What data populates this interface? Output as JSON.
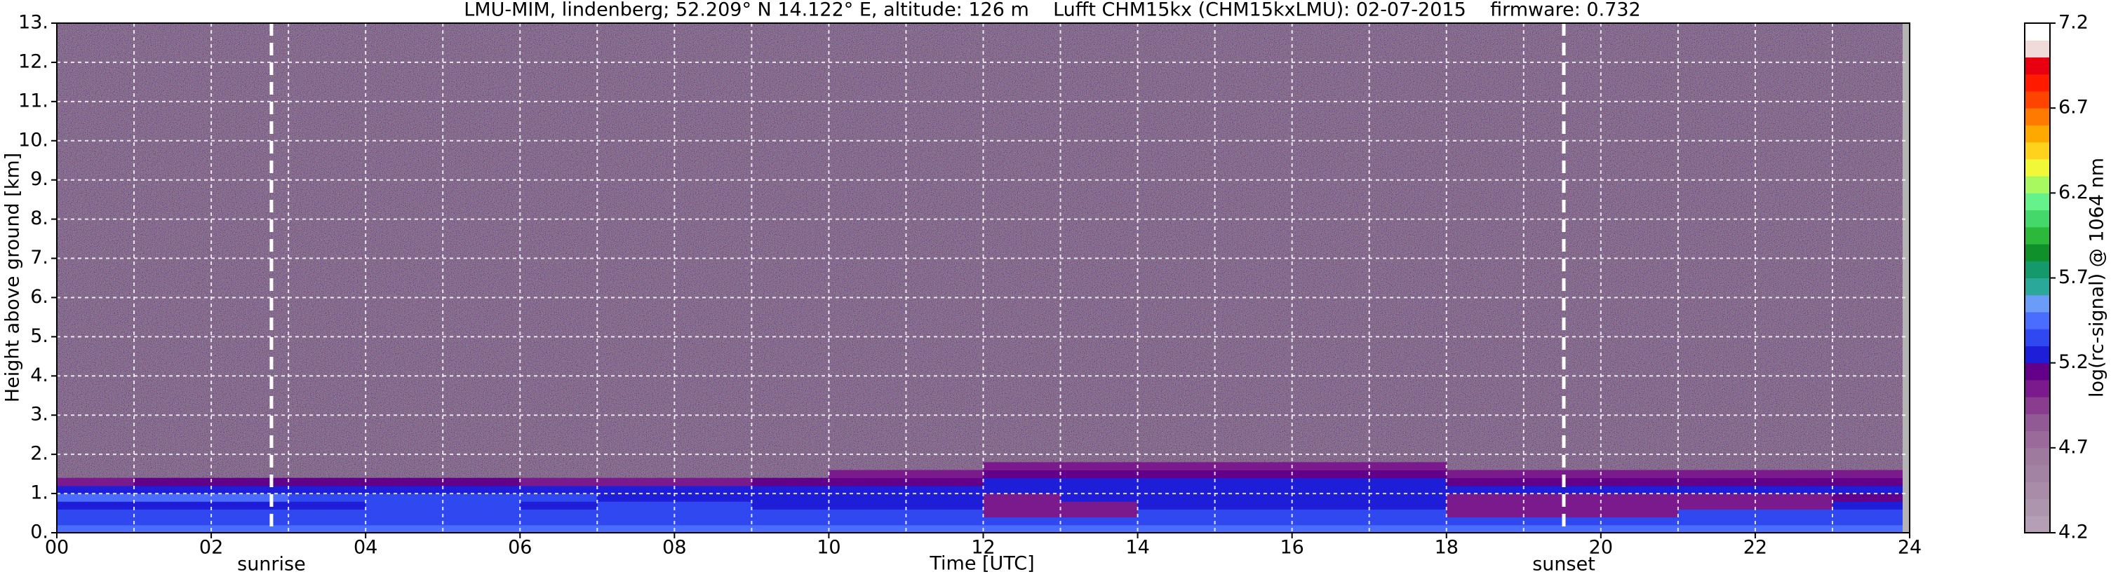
{
  "chart_data": {
    "type": "heatmap",
    "title": "LMU-MIM, lindenberg; 52.209° N 14.122° E, altitude: 126 m    Lufft CHM15kx (CHM15kxLMU): 02-07-2015    firmware: 0.732",
    "xlabel": "Time [UTC]",
    "ylabel": "Height above ground [km]",
    "clabel": "log(rc-signal) @ 1064 nm",
    "xlim": [
      0,
      24
    ],
    "ylim": [
      0,
      13
    ],
    "clim": [
      4.2,
      7.2
    ],
    "xticks": [
      {
        "value": 0,
        "label": "00"
      },
      {
        "value": 2,
        "label": "02"
      },
      {
        "value": 4,
        "label": "04"
      },
      {
        "value": 6,
        "label": "06"
      },
      {
        "value": 8,
        "label": "08"
      },
      10,
      12,
      14,
      16,
      18,
      20,
      22,
      24
    ],
    "xminorticks": [
      1,
      3,
      5,
      7,
      9,
      11,
      13,
      15,
      17,
      19,
      21,
      23
    ],
    "yticks": [
      {
        "value": 0,
        "label": "0."
      },
      {
        "value": 1,
        "label": "1."
      },
      {
        "value": 2,
        "label": "2."
      },
      {
        "value": 3,
        "label": "3."
      },
      {
        "value": 4,
        "label": "4."
      },
      {
        "value": 5,
        "label": "5."
      },
      {
        "value": 6,
        "label": "6."
      },
      {
        "value": 7,
        "label": "7."
      },
      {
        "value": 8,
        "label": "8."
      },
      {
        "value": 9,
        "label": "9."
      },
      {
        "value": 10,
        "label": "10."
      },
      {
        "value": 11,
        "label": "11."
      },
      {
        "value": 12,
        "label": "12."
      },
      {
        "value": 13,
        "label": "13."
      }
    ],
    "cticks": [
      4.2,
      4.7,
      5.2,
      5.7,
      6.2,
      6.7,
      7.2
    ],
    "colors": [
      "#b59fb5",
      "#ad95ad",
      "#a88ca8",
      "#a383a3",
      "#9e7a9e",
      "#9a6b9a",
      "#925a94",
      "#8a3c8e",
      "#7a1a8c",
      "#62008a",
      "#1e1ed8",
      "#2f48f0",
      "#4a6cff",
      "#6a9cf8",
      "#2aa899",
      "#149a6a",
      "#10902a",
      "#2cb83a",
      "#44d86a",
      "#66f28a",
      "#a8f860",
      "#f0f838",
      "#ffd21e",
      "#ffa800",
      "#ff7a00",
      "#ff4400",
      "#ff1a00",
      "#e80010",
      "#f0dada",
      "#ffffff"
    ],
    "grid": true,
    "xbins": [
      0,
      1,
      2,
      3,
      4,
      5,
      6,
      7,
      8,
      9,
      10,
      11,
      12,
      13,
      14,
      15,
      16,
      17,
      18,
      19,
      20,
      21,
      22,
      23,
      24
    ],
    "ybins": [
      0,
      0.2,
      0.4,
      0.6,
      0.8,
      1.0,
      1.2,
      1.4,
      1.6,
      1.8
    ],
    "z": [
      [
        5.45,
        5.45,
        5.45,
        5.45,
        5.45,
        5.45,
        5.45,
        5.45,
        5.45,
        5.45,
        5.45,
        5.45,
        5.45,
        5.45,
        5.45,
        5.45,
        5.45,
        5.45,
        5.45,
        5.45,
        5.45,
        5.45,
        5.45,
        5.45
      ],
      [
        5.35,
        5.35,
        5.35,
        5.35,
        5.35,
        5.35,
        5.35,
        5.35,
        5.35,
        5.3,
        5.3,
        5.3,
        5.3,
        5.3,
        5.3,
        5.3,
        5.3,
        5.3,
        5.3,
        5.3,
        5.3,
        5.3,
        5.3,
        5.3
      ],
      [
        5.3,
        5.3,
        5.3,
        5.3,
        5.3,
        5.3,
        5.3,
        5.3,
        5.35,
        5.3,
        5.3,
        5.3,
        5.0,
        5.0,
        5.3,
        5.3,
        5.3,
        5.3,
        5.0,
        5.0,
        5.0,
        5.3,
        5.3,
        5.3
      ],
      [
        5.25,
        5.25,
        5.25,
        5.25,
        5.3,
        5.3,
        5.25,
        5.3,
        5.3,
        5.25,
        5.25,
        5.25,
        5.0,
        5.05,
        5.25,
        5.25,
        5.25,
        5.25,
        5.0,
        5.0,
        5.05,
        5.05,
        5.05,
        5.25
      ],
      [
        5.4,
        5.4,
        5.4,
        5.35,
        5.3,
        5.3,
        5.3,
        5.25,
        5.25,
        5.2,
        5.2,
        5.2,
        5.05,
        5.2,
        5.2,
        5.2,
        5.2,
        5.2,
        5.05,
        5.05,
        5.05,
        5.05,
        5.05,
        5.1
      ],
      [
        5.25,
        5.25,
        5.25,
        5.25,
        5.25,
        5.25,
        5.25,
        5.2,
        5.2,
        5.2,
        5.2,
        5.2,
        5.2,
        5.2,
        5.2,
        5.2,
        5.2,
        5.2,
        5.2,
        5.25,
        5.25,
        5.25,
        5.25,
        5.25
      ],
      [
        5.0,
        5.1,
        5.1,
        5.1,
        5.1,
        5.1,
        5.05,
        5.0,
        5.0,
        5.15,
        5.15,
        5.15,
        5.2,
        5.2,
        5.2,
        5.2,
        5.2,
        5.2,
        5.1,
        5.1,
        5.1,
        5.1,
        5.1,
        5.1
      ],
      [
        null,
        null,
        null,
        null,
        null,
        null,
        null,
        null,
        null,
        null,
        5.0,
        5.0,
        5.15,
        5.15,
        5.15,
        5.15,
        5.15,
        5.15,
        5.0,
        5.0,
        5.0,
        5.0,
        5.0,
        5.0
      ],
      [
        null,
        null,
        null,
        null,
        null,
        null,
        null,
        null,
        null,
        null,
        null,
        null,
        5.0,
        5.0,
        5.0,
        5.0,
        5.0,
        5.0,
        null,
        null,
        null,
        null,
        null,
        null
      ]
    ],
    "annotations": [
      {
        "text": "sunrise",
        "x": 2.78
      },
      {
        "text": "sunset",
        "x": 19.52
      }
    ]
  }
}
